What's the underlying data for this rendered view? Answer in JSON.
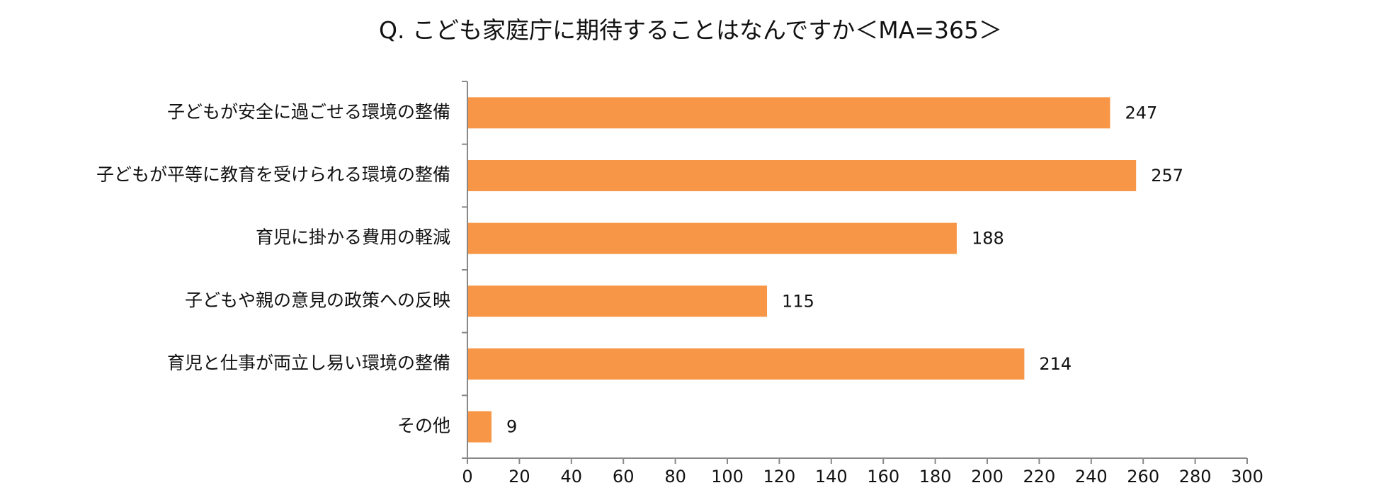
{
  "chart_data": {
    "type": "bar",
    "orientation": "horizontal",
    "title": "Q. こども家庭庁に期待することはなんですか＜MA=365＞",
    "categories": [
      "子どもが安全に過ごせる環境の整備",
      "子どもが平等に教育を受けられる環境の整備",
      "育児に掛かる費用の軽減",
      "子どもや親の意見の政策への反映",
      "育児と仕事が両立し易い環境の整備",
      "その他"
    ],
    "values": [
      247,
      257,
      188,
      115,
      214,
      9
    ],
    "value_labels": [
      "247",
      "257",
      "188",
      "115",
      "214",
      "9"
    ],
    "xlim": [
      0,
      300
    ],
    "xticks": [
      "0",
      "20",
      "40",
      "60",
      "80",
      "100",
      "120",
      "140",
      "160",
      "180",
      "200",
      "220",
      "240",
      "260",
      "280",
      "300"
    ],
    "bar_color": "#F79646",
    "axis_color": "#888888",
    "grid": false,
    "legend": "none"
  }
}
